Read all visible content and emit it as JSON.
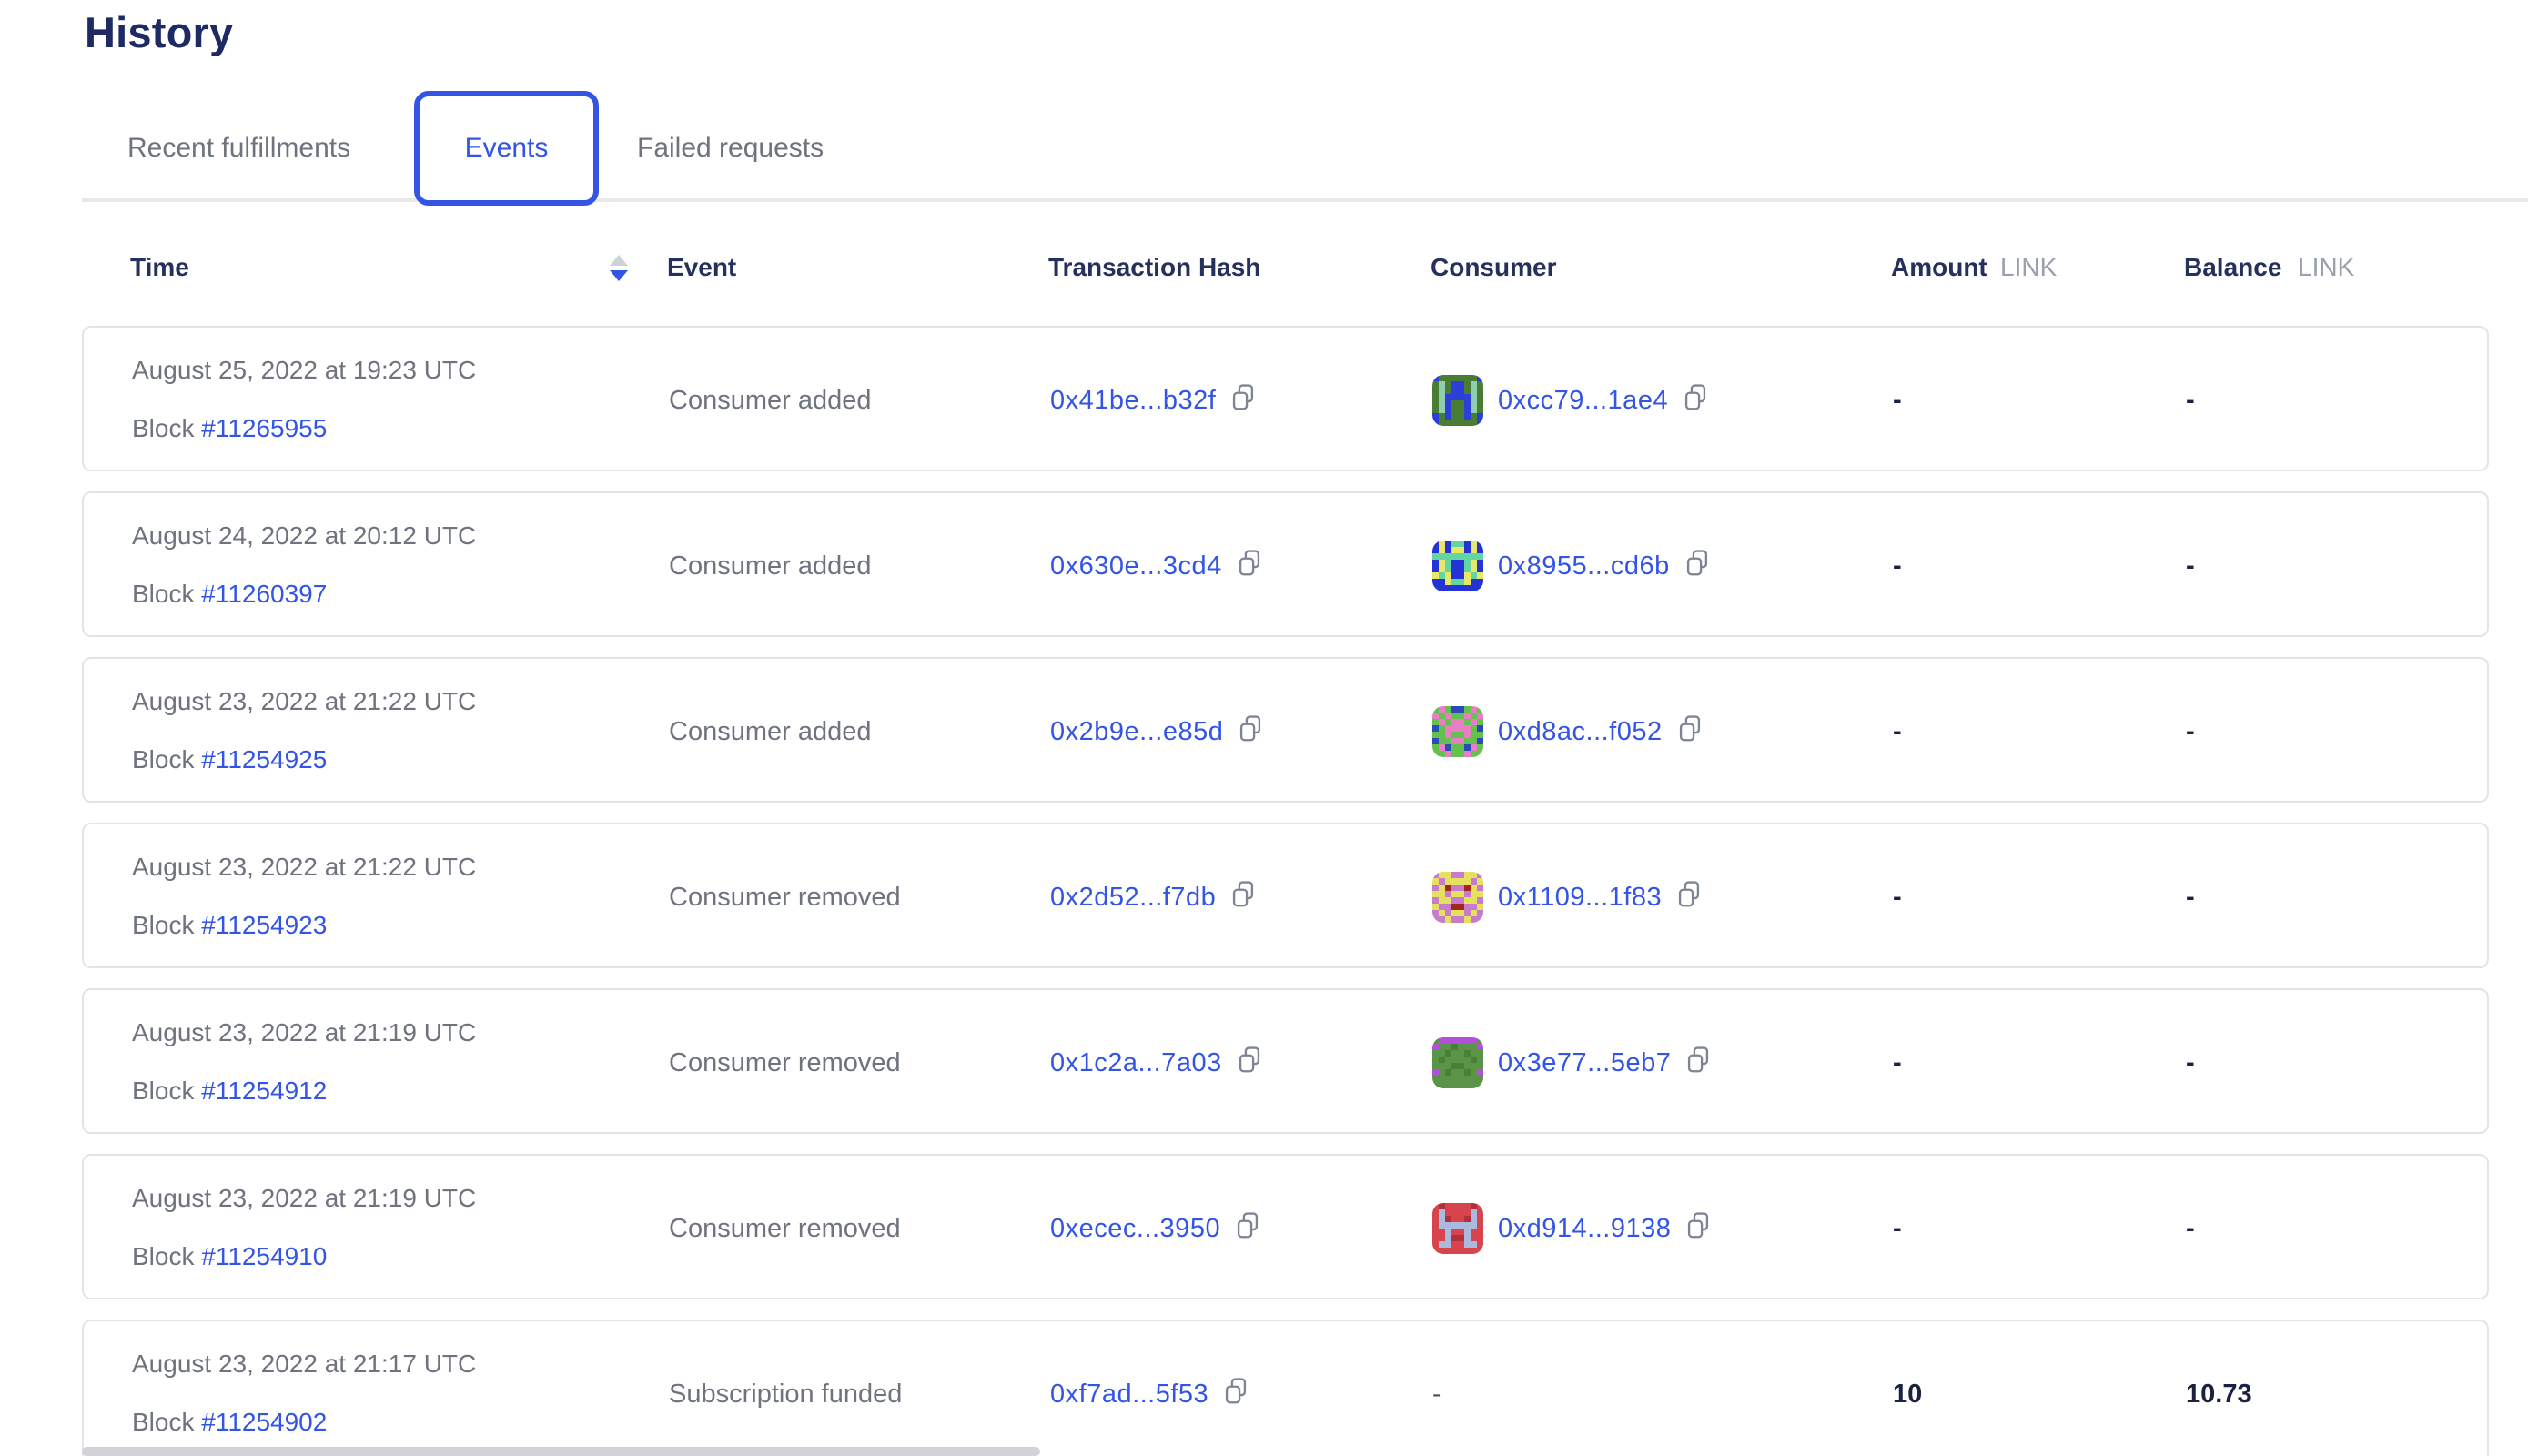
{
  "page": {
    "title": "History"
  },
  "tabs": [
    {
      "label": "Recent fulfillments",
      "active": false
    },
    {
      "label": "Events",
      "active": true
    },
    {
      "label": "Failed requests",
      "active": false
    }
  ],
  "table": {
    "columns": {
      "time": "Time",
      "event": "Event",
      "tx": "Transaction Hash",
      "consumer": "Consumer",
      "amount": "Amount",
      "balance": "Balance",
      "unit": "LINK"
    },
    "sort": {
      "column": "Time",
      "direction": "descending"
    },
    "rows": [
      {
        "date": "August 25, 2022 at 19:23 UTC",
        "block_label": "Block",
        "block": "#11265955",
        "event": "Consumer added",
        "tx": "0x41be...b32f",
        "consumer": "0xcc79...1ae4",
        "amount": "-",
        "balance": "-",
        "avatar": {
          "palette": [
            "#4a7c33",
            "#2b3fd9",
            "#8fcfae"
          ],
          "pixels": [
            "10000001",
            "02011020",
            "02011020",
            "02111120",
            "02100120",
            "02100120",
            "10100101",
            "10000001"
          ]
        }
      },
      {
        "date": "August 24, 2022 at 20:12 UTC",
        "block_label": "Block",
        "block": "#11260397",
        "event": "Consumer added",
        "tx": "0x630e...3cd4",
        "consumer": "0x8955...cd6b",
        "amount": "-",
        "balance": "-",
        "avatar": {
          "palette": [
            "#2433d6",
            "#e9e767",
            "#63d6a2"
          ],
          "pixels": [
            "01022010",
            "01011010",
            "22222222",
            "01200210",
            "01200210",
            "12100121",
            "00122100",
            "00000000"
          ]
        }
      },
      {
        "date": "August 23, 2022 at 21:22 UTC",
        "block_label": "Block",
        "block": "#11254925",
        "event": "Consumer added",
        "tx": "0x2b9e...e85d",
        "consumer": "0xd8ac...f052",
        "amount": "-",
        "balance": "-",
        "avatar": {
          "palette": [
            "#63c24e",
            "#ea7ec6",
            "#2c4ab8"
          ],
          "pixels": [
            "01022010",
            "10100101",
            "01011010",
            "20111102",
            "00100100",
            "20011002",
            "01200210",
            "00100100"
          ]
        }
      },
      {
        "date": "August 23, 2022 at 21:22 UTC",
        "block_label": "Block",
        "block": "#11254923",
        "event": "Consumer removed",
        "tx": "0x2d52...f7db",
        "consumer": "0x1109...1f83",
        "amount": "-",
        "balance": "-",
        "avatar": {
          "palette": [
            "#c77bcd",
            "#e5e15e",
            "#a3251d"
          ],
          "pixels": [
            "01100110",
            "10111101",
            "01200210",
            "11011011",
            "01100110",
            "10022001",
            "01011010",
            "00100100"
          ]
        }
      },
      {
        "date": "August 23, 2022 at 21:19 UTC",
        "block_label": "Block",
        "block": "#11254912",
        "event": "Consumer removed",
        "tx": "0x1c2a...7a03",
        "consumer": "0x3e77...5eb7",
        "amount": "-",
        "balance": "-",
        "avatar": {
          "palette": [
            "#5a9447",
            "#b44fd9",
            "#48803a"
          ],
          "pixels": [
            "01111110",
            "10020001",
            "00200200",
            "02000020",
            "00022000",
            "10200201",
            "00000000",
            "00000000"
          ]
        }
      },
      {
        "date": "August 23, 2022 at 21:19 UTC",
        "block_label": "Block",
        "block": "#11254910",
        "event": "Consumer removed",
        "tx": "0xecec...3950",
        "consumer": "0xd914...9138",
        "amount": "-",
        "balance": "-",
        "avatar": {
          "palette": [
            "#d7444b",
            "#a9bade",
            "#b2303a"
          ],
          "pixels": [
            "02000020",
            "01000010",
            "01200210",
            "01111110",
            "00100100",
            "00122100",
            "01100110",
            "00000000"
          ]
        }
      },
      {
        "date": "August 23, 2022 at 21:17 UTC",
        "block_label": "Block",
        "block": "#11254902",
        "event": "Subscription funded",
        "tx": "0xf7ad...5f53",
        "consumer": "-",
        "amount": "10",
        "balance": "10.73",
        "avatar": null
      }
    ]
  },
  "colors": {
    "accent_blue": "#3355e5",
    "title_navy": "#1e2a63",
    "header_navy": "#26305c",
    "body_gray": "#6e737e",
    "unit_gray": "#9aa0ac",
    "card_border": "#e4e4e8",
    "value_dark": "#1b2140"
  },
  "icons": {
    "copy": "copy-icon",
    "sort": "sort-arrows-icon"
  }
}
